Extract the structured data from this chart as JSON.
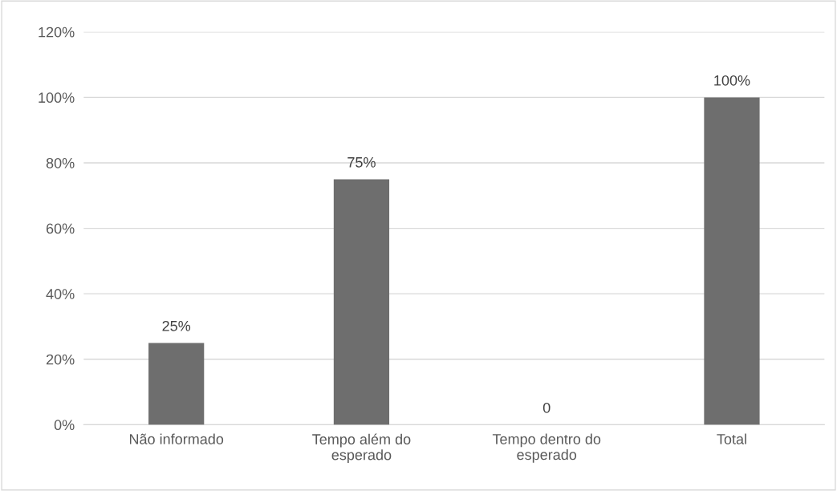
{
  "chart_data": {
    "type": "bar",
    "categories": [
      "Não informado",
      "Tempo além do\nesperado",
      "Tempo dentro do\nesperado",
      "Total"
    ],
    "values": [
      25,
      75,
      0,
      100
    ],
    "color": "#6e6e6e",
    "value_labels": [
      "25%",
      "75%",
      "0",
      "100%"
    ],
    "ylim": [
      0,
      120
    ],
    "yticks": [
      {
        "value": 0,
        "label": "0%"
      },
      {
        "value": 20,
        "label": "20%"
      },
      {
        "value": 40,
        "label": "40%"
      },
      {
        "value": 60,
        "label": "60%"
      },
      {
        "value": 80,
        "label": "80%"
      },
      {
        "value": 100,
        "label": "100%"
      },
      {
        "value": 120,
        "label": "120%"
      }
    ],
    "grid": "y"
  }
}
